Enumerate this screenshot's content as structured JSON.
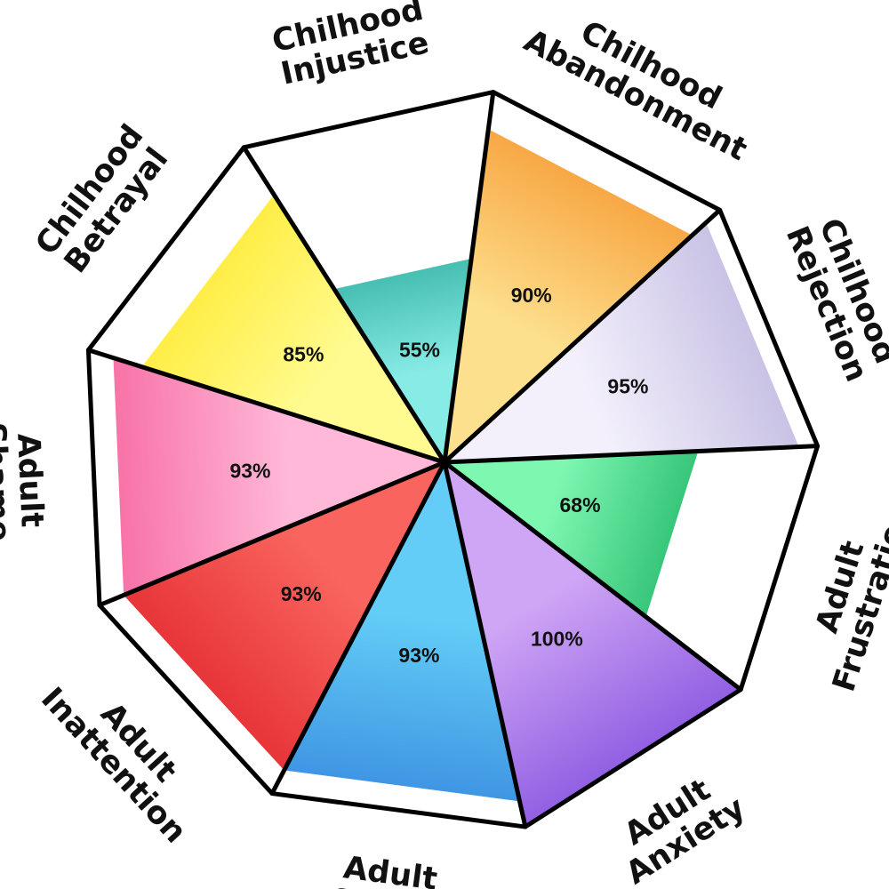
{
  "chart_data": {
    "type": "polar-area",
    "categories": [
      "Chilhood Abandonment",
      "Chilhood Rejection",
      "Adult Frustration",
      "Adult Anxiety",
      "Adult Stress",
      "Adult Inattention",
      "Adult Shame",
      "Chilhood Betrayal",
      "Chilhood Injustice"
    ],
    "label_lines": [
      [
        "Chilhood",
        "Abandonment"
      ],
      [
        "Chilhood",
        "Rejection"
      ],
      [
        "Adult",
        "Frustration"
      ],
      [
        "Adult",
        "Anxiety"
      ],
      [
        "Adult",
        "Stress"
      ],
      [
        "Adult",
        "Inattention"
      ],
      [
        "Adult",
        "Shame"
      ],
      [
        "Chilhood",
        "Betrayal"
      ],
      [
        "Chilhood",
        "Injustice"
      ]
    ],
    "values": [
      90,
      95,
      68,
      100,
      93,
      93,
      93,
      85,
      55
    ],
    "value_labels": [
      "90%",
      "95%",
      "68%",
      "100%",
      "93%",
      "93%",
      "93%",
      "85%",
      "55%"
    ],
    "colors": [
      [
        "#f7a13c",
        "#fde08e"
      ],
      [
        "#c4bde2",
        "#f3f0fc"
      ],
      [
        "#2fc173",
        "#7ef7b1"
      ],
      [
        "#8a57e0",
        "#cfa5f5"
      ],
      [
        "#3b8fe0",
        "#63cdf7"
      ],
      [
        "#e52f34",
        "#f9655e"
      ],
      [
        "#f76aa2",
        "#ffb8d8"
      ],
      [
        "#ffec3d",
        "#fffb91"
      ],
      [
        "#3fb9ac",
        "#87ebe6"
      ]
    ],
    "ylim": [
      0,
      100
    ]
  }
}
